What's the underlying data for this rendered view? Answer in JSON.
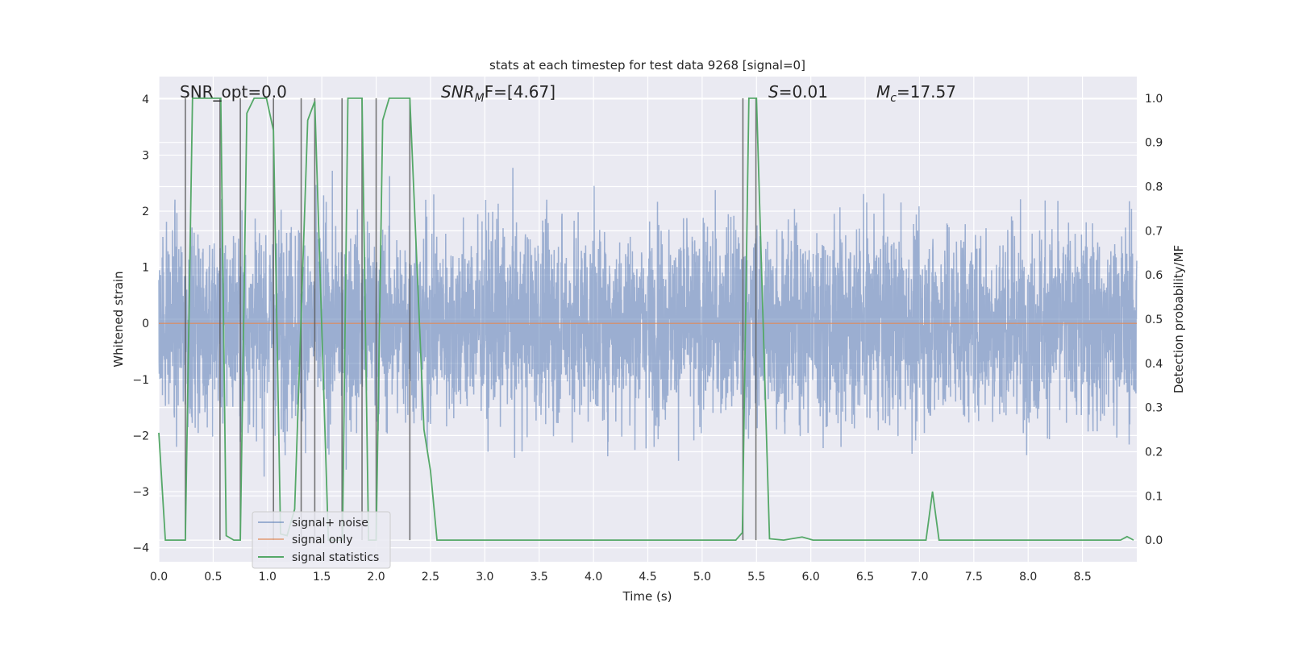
{
  "chart_data": {
    "type": "line",
    "title": "stats at each timestep for test data 9268 [signal=0]",
    "xlabel": "Time (s)",
    "ylabel": "Whitened strain",
    "ylabel_right": "Detection probability/MF",
    "xlim": [
      0,
      9.0
    ],
    "ylim": [
      -4.25,
      4.4
    ],
    "ylim_right": [
      -0.049,
      1.049
    ],
    "grid": true,
    "x_ticks": [
      "0.0",
      "0.5",
      "1.0",
      "1.5",
      "2.0",
      "2.5",
      "3.0",
      "3.5",
      "4.0",
      "4.5",
      "5.0",
      "5.5",
      "6.0",
      "6.5",
      "7.0",
      "7.5",
      "8.0",
      "8.5"
    ],
    "y_ticks": [
      "−4",
      "−3",
      "−2",
      "−1",
      "0",
      "1",
      "2",
      "3",
      "4"
    ],
    "y_ticks_right": [
      "0.0",
      "0.1",
      "0.2",
      "0.3",
      "0.4",
      "0.5",
      "0.6",
      "0.7",
      "0.8",
      "0.9",
      "1.0"
    ],
    "annotations": {
      "snr_opt": "SNR_opt=0.0",
      "snr_mf_main": "SNR",
      "snr_mf_sub": "M",
      "snr_mf_rest": "F=[4.67]",
      "s_var": "S",
      "s_rest": "=0.01",
      "mc_main": "M",
      "mc_sub": "c",
      "mc_rest": "=17.57"
    },
    "legend": {
      "placement": "lower-left",
      "entries": [
        "signal+ noise",
        "signal only",
        "signal statistics"
      ]
    },
    "colors": {
      "noise": "#4c72b0",
      "signal": "#dd8452",
      "stats": "#55a868",
      "markers": "#555555",
      "bg": "#eaeaf2"
    },
    "series": [
      {
        "name": "signal+ noise",
        "axis": "left",
        "kind": "noise",
        "std": 1.15,
        "samples": 4600,
        "t_end": 9.0
      },
      {
        "name": "signal only",
        "axis": "left",
        "x": [
          0,
          9.0
        ],
        "y": [
          0,
          0
        ]
      },
      {
        "name": "signal statistics",
        "axis": "right",
        "x": [
          0.0,
          0.06,
          0.244,
          0.31,
          0.57,
          0.62,
          0.69,
          0.75,
          0.81,
          0.877,
          0.99,
          1.055,
          1.12,
          1.18,
          1.25,
          1.37,
          1.435,
          1.56,
          1.69,
          1.74,
          1.87,
          1.93,
          2.0,
          2.06,
          2.12,
          2.31,
          2.44,
          2.5,
          2.56,
          5.31,
          5.37,
          5.43,
          5.5,
          5.62,
          5.75,
          5.92,
          6.02,
          7.06,
          7.12,
          7.18,
          8.85,
          8.91,
          8.97
        ],
        "y": [
          0.243,
          0.0,
          0.0,
          1.0,
          1.0,
          0.01,
          0.0,
          0.0,
          0.966,
          1.0,
          1.0,
          0.927,
          0.014,
          0.01,
          0.07,
          0.95,
          0.993,
          0.0,
          0.0,
          1.0,
          1.0,
          0.0,
          0.0,
          0.95,
          1.0,
          1.0,
          0.25,
          0.157,
          0.0,
          0.0,
          0.017,
          1.0,
          1.0,
          0.003,
          0.0,
          0.007,
          0.0,
          0.0,
          0.11,
          0.0,
          0.0,
          0.008,
          0.0
        ]
      }
    ],
    "marker_lines_x": [
      0.244,
      0.563,
      0.75,
      1.055,
      1.31,
      1.435,
      1.686,
      1.87,
      2.0,
      2.31,
      5.375,
      5.495
    ]
  }
}
